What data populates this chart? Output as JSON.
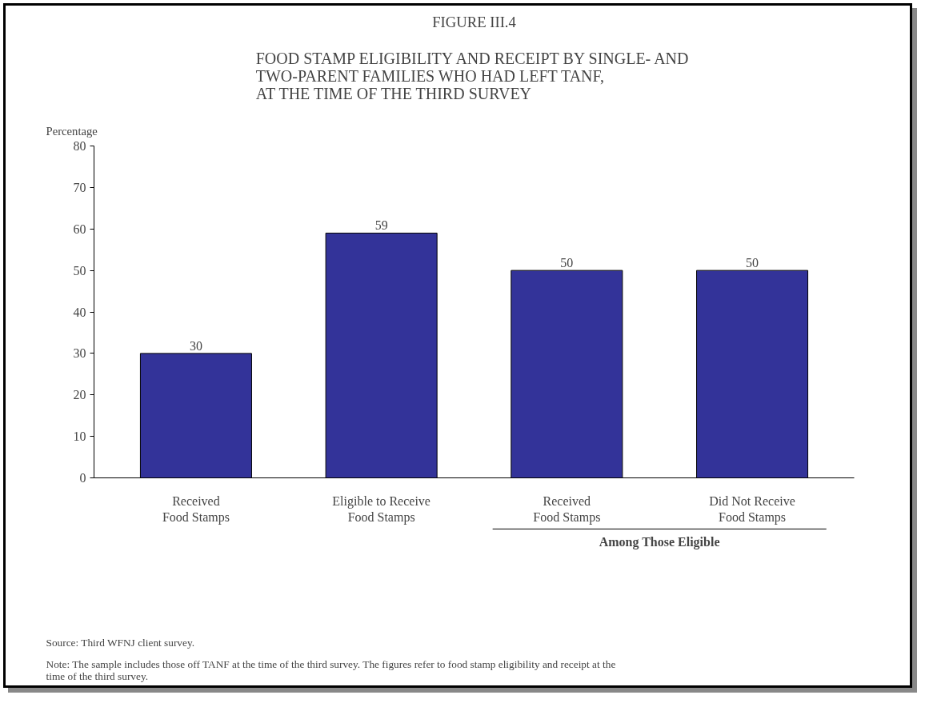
{
  "chart_data": {
    "type": "bar",
    "title": "FIGURE III.4",
    "subtitle": "FOOD STAMP ELIGIBILITY AND RECEIPT BY SINGLE- AND\nTWO-PARENT FAMILIES WHO HAD LEFT TANF,\nAT THE TIME OF THE THIRD SURVEY",
    "ylabel": "Percentage",
    "categories": [
      "Received\nFood Stamps",
      "Eligible to Receive\nFood Stamps",
      "Received\nFood Stamps",
      "Did Not Receive\nFood Stamps"
    ],
    "values": [
      30,
      59,
      50,
      50
    ],
    "color": "#333399",
    "ylim": [
      0,
      80
    ],
    "yticks": [
      0,
      10,
      20,
      30,
      40,
      50,
      60,
      70,
      80
    ],
    "grid": false,
    "data_labels": true,
    "annotations": [
      "Among Those Eligible",
      "Source:    Third WFNJ client survey.",
      "Note:      The sample includes those off TANF at the time of the third survey.  The figures refer to food stamp eligibility and receipt at the\n                time of the third survey."
    ]
  }
}
